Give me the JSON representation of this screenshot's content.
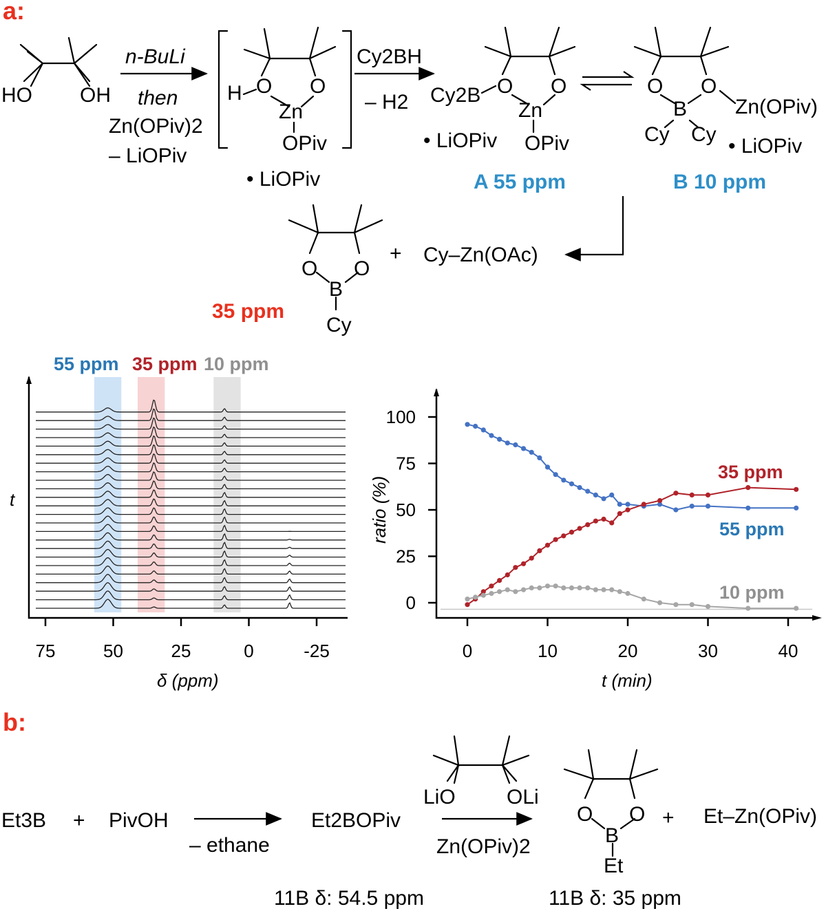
{
  "panels": {
    "a": "a:",
    "b": "b:"
  },
  "scheme_a": {
    "diol_ho": "HO",
    "diol_oh": "OH",
    "reagent1": "n-BuLi",
    "then": "then",
    "reagent2": "Zn(OPiv)2",
    "byproduct1": "– LiOPiv",
    "int_h": "H",
    "int_o1": "O",
    "int_o2": "O",
    "int_zn": "Zn",
    "int_opiv": "OPiv",
    "int_lio": "• LiOPiv",
    "reagent3": "Cy2BH",
    "byproduct2": "– H2",
    "a_cy2b": "Cy2B",
    "a_o1": "O",
    "a_o2": "O",
    "a_zn": "Zn",
    "a_lio": "• LiOPiv",
    "a_opiv": "OPiv",
    "a_label": "A 55 ppm",
    "b_o1": "O",
    "b_o2": "O",
    "b_b": "B",
    "b_zn": "Zn(OPiv)",
    "b_cy1": "Cy",
    "b_cy2": "Cy",
    "b_lio": "• LiOPiv",
    "b_label": "B 10 ppm",
    "p_o1": "O",
    "p_o2": "O",
    "p_b": "B",
    "p_cy": "Cy",
    "p_ppm": "35 ppm",
    "plus": "+",
    "p_cyzn": "Cy–Zn(OAc)"
  },
  "nmr": {
    "labels": {
      "blue": "55 ppm",
      "red": "35 ppm",
      "gray": "10 ppm"
    },
    "ylabel": "t",
    "xlabel": "δ (ppm)",
    "xticks": [
      75,
      50,
      25,
      0,
      -25
    ],
    "xrange": [
      80,
      -36
    ],
    "highlights": [
      {
        "from": 57,
        "to": 47,
        "color": "#cfe3f7"
      },
      {
        "from": 41,
        "to": 31,
        "color": "#f8d3d3"
      },
      {
        "from": 13,
        "to": 3,
        "color": "#e3e3e3"
      }
    ],
    "n_traces": 24
  },
  "chart_data": {
    "type": "line",
    "xlabel": "t (min)",
    "ylabel": "ratio (%)",
    "xlim": [
      0,
      42
    ],
    "ylim": [
      -5,
      110
    ],
    "xticks": [
      0,
      10,
      20,
      30,
      40
    ],
    "yticks": [
      0,
      25,
      50,
      75,
      100
    ],
    "series": [
      {
        "name": "55 ppm",
        "color": "#4472c4",
        "x": [
          0,
          1,
          2,
          3,
          4,
          5,
          6,
          7,
          8,
          9,
          10,
          11,
          12,
          13,
          14,
          15,
          16,
          17,
          18,
          19,
          20,
          22,
          24,
          26,
          28,
          30,
          35,
          41
        ],
        "y": [
          96,
          95,
          93,
          90,
          88,
          86,
          85,
          83,
          81,
          78,
          73,
          69,
          66,
          64,
          62,
          60,
          58,
          56,
          58,
          53,
          53,
          52,
          53,
          50,
          52,
          52,
          51,
          51
        ]
      },
      {
        "name": "35 ppm",
        "color": "#b0232a",
        "x": [
          0,
          1,
          2,
          3,
          4,
          5,
          6,
          7,
          8,
          9,
          10,
          11,
          12,
          13,
          14,
          15,
          16,
          17,
          18,
          19,
          20,
          22,
          24,
          26,
          28,
          30,
          35,
          41
        ],
        "y": [
          -1,
          2,
          6,
          9,
          12,
          15,
          19,
          21,
          24,
          28,
          31,
          34,
          36,
          38,
          40,
          42,
          44,
          45,
          43,
          48,
          50,
          53,
          55,
          59,
          58,
          58,
          62,
          61
        ]
      },
      {
        "name": "10 ppm",
        "color": "#a6a6a6",
        "x": [
          0,
          1,
          2,
          3,
          4,
          5,
          6,
          7,
          8,
          9,
          10,
          11,
          12,
          13,
          14,
          15,
          16,
          17,
          18,
          19,
          20,
          22,
          24,
          26,
          28,
          30,
          35,
          41
        ],
        "y": [
          2,
          3,
          4,
          5,
          6,
          7,
          6,
          7,
          8,
          8,
          9,
          9,
          8,
          8,
          8,
          8,
          7,
          7,
          7,
          6,
          5,
          2,
          0,
          -1,
          -1,
          -2,
          -3,
          -3
        ]
      }
    ]
  },
  "scheme_b": {
    "et3b": "Et3B",
    "plus1": "+",
    "pivoh": "PivOH",
    "byproduct": "– ethane",
    "et2bopiv": "Et2BOPiv",
    "lio": "LiO",
    "oli": "OLi",
    "reagent": "Zn(OPiv)2",
    "p_o1": "O",
    "p_o2": "O",
    "p_b": "B",
    "p_et": "Et",
    "plus2": "+",
    "p_etzn": "Et–Zn(OPiv)",
    "nmr1": "11B δ:  54.5 ppm",
    "nmr2": "11B δ:  35 ppm"
  }
}
